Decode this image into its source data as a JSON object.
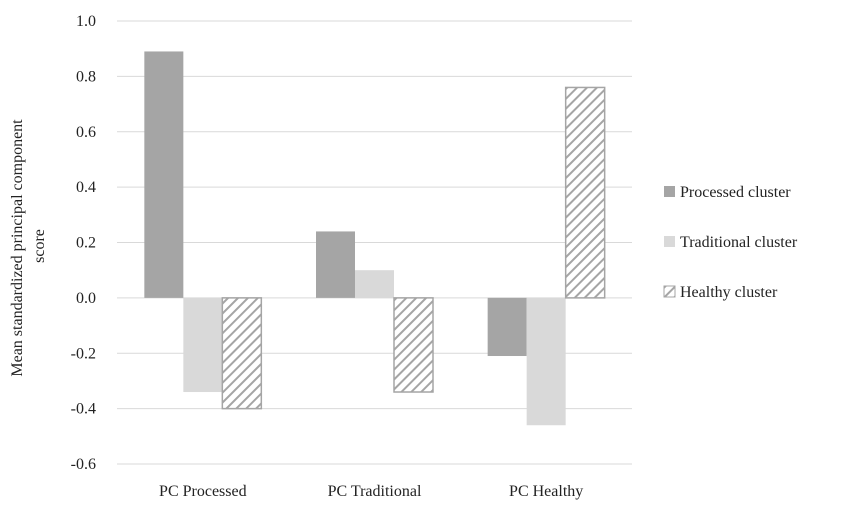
{
  "chart_data": {
    "type": "bar",
    "title": "",
    "xlabel": "",
    "ylabel_lines": [
      "Mean standardized principal component",
      "score"
    ],
    "categories": [
      "PC Processed",
      "PC Traditional",
      "PC Healthy"
    ],
    "series": [
      {
        "name": "Processed cluster",
        "values": [
          0.89,
          0.24,
          -0.21
        ],
        "color": "#a5a5a5",
        "pattern": "solid"
      },
      {
        "name": "Traditional cluster",
        "values": [
          -0.34,
          0.1,
          -0.46
        ],
        "color": "#d9d9d9",
        "pattern": "solid"
      },
      {
        "name": "Healthy cluster",
        "values": [
          -0.4,
          -0.34,
          0.76
        ],
        "color": "#a5a5a5",
        "pattern": "diagonal-hatch"
      }
    ],
    "ylim": [
      -0.6,
      1.0
    ],
    "yticks": [
      -0.6,
      -0.4,
      -0.2,
      0.0,
      0.2,
      0.4,
      0.6,
      0.8,
      1.0
    ],
    "ytick_labels": [
      "-0.6",
      "-0.4",
      "-0.2",
      "0.0",
      "0.2",
      "0.4",
      "0.6",
      "0.8",
      "1.0"
    ],
    "grid": true,
    "legend": "right"
  }
}
